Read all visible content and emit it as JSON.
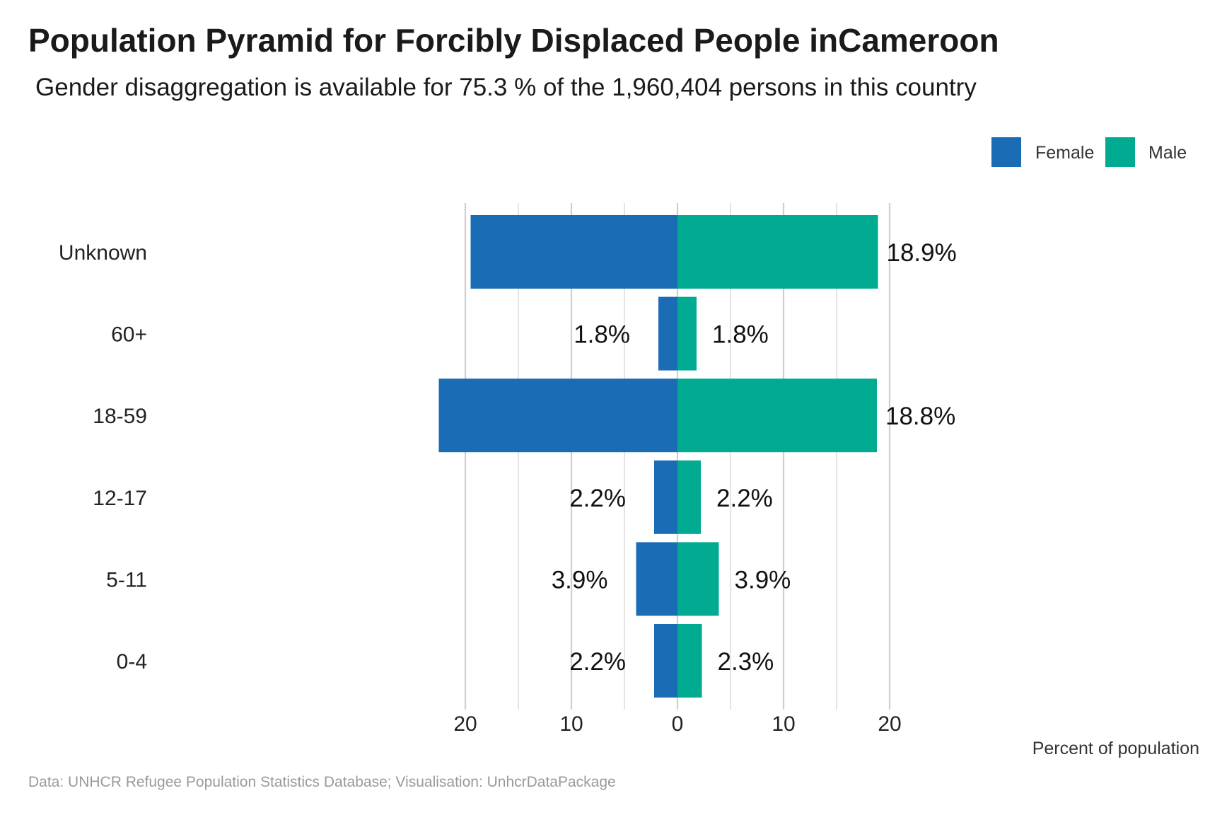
{
  "chart_data": {
    "type": "bar",
    "orientation": "horizontal-pyramid",
    "title": "Population Pyramid for Forcibly Displaced People inCameroon",
    "subtitle": "Gender disaggregation is available for 75.3 % of the 1,960,404 persons in this country",
    "xlabel": "Percent of population",
    "ylabel": "",
    "categories": [
      "Unknown",
      "60+",
      "18-59",
      "12-17",
      "5-11",
      "0-4"
    ],
    "series": [
      {
        "name": "Female",
        "color": "#1a6cb5",
        "values": [
          19.5,
          1.8,
          22.5,
          2.2,
          3.9,
          2.2
        ],
        "labels": [
          "",
          "1.8%",
          "",
          "2.2%",
          "3.9%",
          "2.2%"
        ]
      },
      {
        "name": "Male",
        "color": "#00ab92",
        "values": [
          18.9,
          1.8,
          18.8,
          2.2,
          3.9,
          2.3
        ],
        "labels": [
          "18.9%",
          "1.8%",
          "18.8%",
          "2.2%",
          "3.9%",
          "2.3%"
        ]
      }
    ],
    "xlim": [
      -20,
      20
    ],
    "xticks": [
      -20,
      -10,
      0,
      10,
      20
    ],
    "xtick_labels": [
      "20",
      "10",
      "0",
      "10",
      "20"
    ],
    "grid": "vertical",
    "legend": "top-right",
    "caption": "Data: UNHCR Refugee Population Statistics Database; Visualisation: UnhcrDataPackage"
  }
}
